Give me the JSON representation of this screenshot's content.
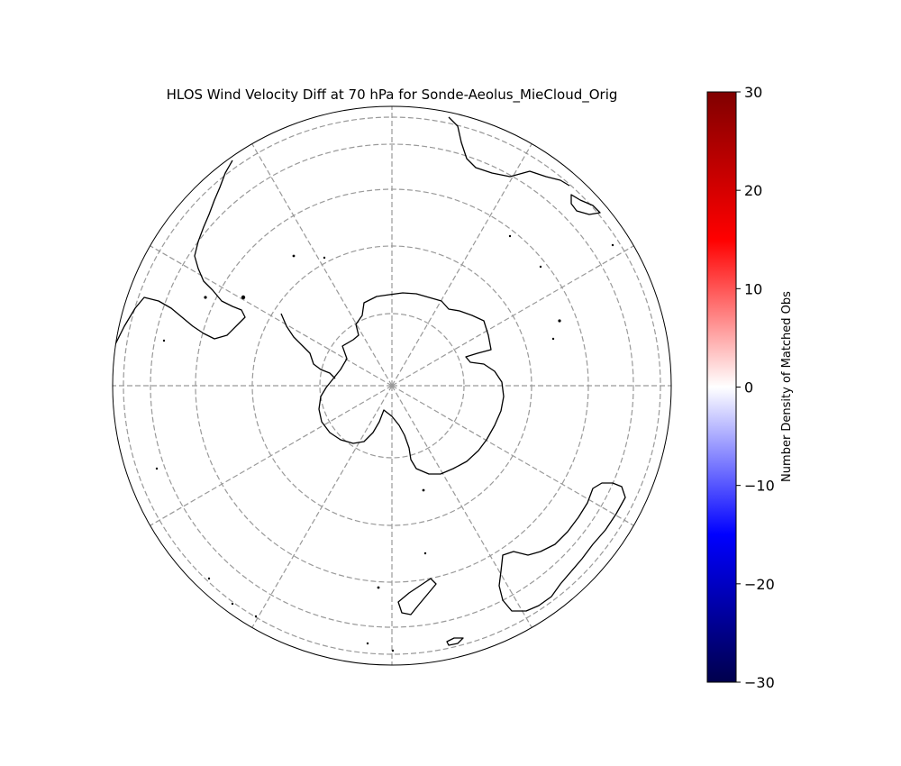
{
  "title": "HLOS Wind Velocity Diff at 70 hPa for Sonde-Aeolus_MieCloud_Orig",
  "map": {
    "projection": "south-polar-stereographic",
    "gridlines": "dashed",
    "grid_color": "#999999",
    "coastline_color": "#000000"
  },
  "colorbar": {
    "label": "Number Density of Matched Obs",
    "colormap": "seismic",
    "min": -30,
    "max": 30,
    "ticks": [
      "30",
      "20",
      "10",
      "0",
      "−10",
      "−20",
      "−30"
    ],
    "colors": [
      "#00004c",
      "#0000ff",
      "#ffffff",
      "#ff0000",
      "#800000"
    ]
  }
}
